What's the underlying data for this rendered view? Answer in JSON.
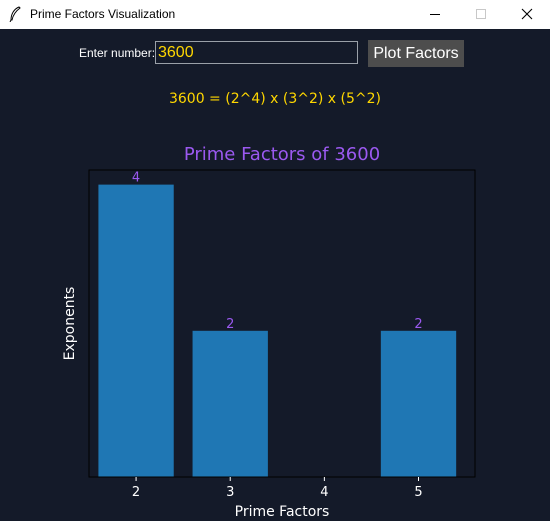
{
  "window": {
    "title": "Prime Factors Visualization"
  },
  "controls": {
    "number_label": "Enter number:",
    "number_value": "3600",
    "plot_button": "Plot Factors"
  },
  "result": {
    "factorization_text": "3600 = (2^4) x (3^2) x (5^2)"
  },
  "colors": {
    "background": "#141a29",
    "bar": "#1f77b4",
    "title": "#9b59f0",
    "bar_label": "#9b59f0",
    "highlight_text": "#ffd700"
  },
  "chart_data": {
    "type": "bar",
    "title": "Prime Factors of 3600",
    "xlabel": "Prime Factors",
    "ylabel": "Exponents",
    "x": [
      2,
      3,
      5
    ],
    "values": [
      4,
      2,
      2
    ],
    "xlim": [
      1.5,
      5.6
    ],
    "ylim": [
      0,
      4.2
    ],
    "xticks": [
      2,
      3,
      4,
      5
    ],
    "yticks": [],
    "grid": false,
    "legend": "none"
  }
}
